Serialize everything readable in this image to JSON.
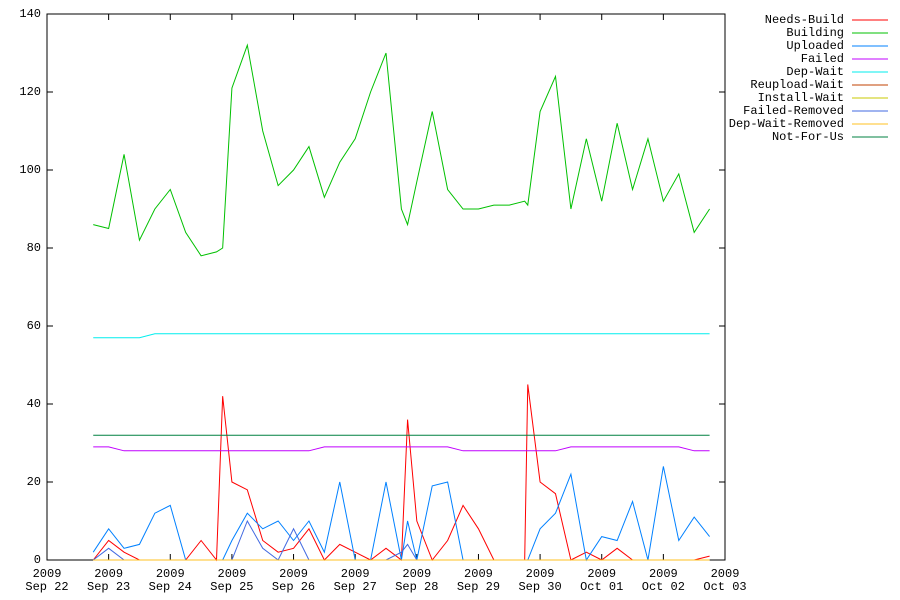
{
  "chart_data": {
    "type": "line",
    "x": [
      0.75,
      1,
      1.25,
      1.5,
      1.75,
      2,
      2.25,
      2.5,
      2.75,
      2.85,
      3,
      3.25,
      3.5,
      3.75,
      4,
      4.25,
      4.5,
      4.75,
      5,
      5.25,
      5.5,
      5.75,
      5.85,
      6,
      6.25,
      6.5,
      6.75,
      7,
      7.25,
      7.5,
      7.75,
      7.8,
      8,
      8.25,
      8.5,
      8.75,
      9,
      9.25,
      9.5,
      9.75,
      10,
      10.25,
      10.5,
      10.75
    ],
    "xlim": [
      0,
      11
    ],
    "xticks": [
      {
        "value": 0,
        "label": "Sep 22",
        "year": "2009"
      },
      {
        "value": 1,
        "label": "Sep 23",
        "year": "2009"
      },
      {
        "value": 2,
        "label": "Sep 24",
        "year": "2009"
      },
      {
        "value": 3,
        "label": "Sep 25",
        "year": "2009"
      },
      {
        "value": 4,
        "label": "Sep 26",
        "year": "2009"
      },
      {
        "value": 5,
        "label": "Sep 27",
        "year": "2009"
      },
      {
        "value": 6,
        "label": "Sep 28",
        "year": "2009"
      },
      {
        "value": 7,
        "label": "Sep 29",
        "year": "2009"
      },
      {
        "value": 8,
        "label": "Sep 30",
        "year": "2009"
      },
      {
        "value": 9,
        "label": "Oct 01",
        "year": "2009"
      },
      {
        "value": 10,
        "label": "Oct 02",
        "year": "2009"
      },
      {
        "value": 11,
        "label": "Oct 03",
        "year": "2009"
      }
    ],
    "ylim": [
      0,
      140
    ],
    "yticks": [
      0,
      20,
      40,
      60,
      80,
      100,
      120,
      140
    ],
    "legend": "outside-top-right",
    "series": [
      {
        "name": "Needs-Build",
        "color": "#ff0000",
        "values": [
          0,
          5,
          2,
          0,
          0,
          0,
          0,
          5,
          0,
          42,
          20,
          18,
          5,
          2,
          3,
          8,
          0,
          4,
          2,
          0,
          3,
          0,
          36,
          10,
          0,
          5,
          14,
          8,
          0,
          0,
          0,
          45,
          20,
          17,
          0,
          2,
          0,
          3,
          0,
          0,
          0,
          0,
          0,
          1
        ]
      },
      {
        "name": "Building",
        "color": "#00c000",
        "values": [
          86,
          85,
          104,
          82,
          90,
          95,
          84,
          78,
          79,
          80,
          121,
          132,
          110,
          96,
          100,
          106,
          93,
          102,
          108,
          120,
          130,
          90,
          86,
          97,
          115,
          95,
          90,
          90,
          91,
          91,
          92,
          91,
          115,
          124,
          90,
          108,
          92,
          112,
          95,
          108,
          92,
          99,
          84,
          90
        ]
      },
      {
        "name": "Uploaded",
        "color": "#0080ff",
        "values": [
          2,
          8,
          3,
          4,
          12,
          14,
          0,
          0,
          0,
          0,
          5,
          12,
          8,
          10,
          5,
          10,
          2,
          20,
          0,
          0,
          20,
          0,
          10,
          0,
          19,
          20,
          0,
          0,
          0,
          0,
          0,
          0,
          8,
          12,
          22,
          0,
          6,
          5,
          15,
          0,
          24,
          5,
          11,
          6
        ]
      },
      {
        "name": "Failed",
        "color": "#c000ff",
        "values": [
          29,
          29,
          28,
          28,
          28,
          28,
          28,
          28,
          28,
          28,
          28,
          28,
          28,
          28,
          28,
          28,
          29,
          29,
          29,
          29,
          29,
          29,
          29,
          29,
          29,
          29,
          28,
          28,
          28,
          28,
          28,
          28,
          28,
          28,
          29,
          29,
          29,
          29,
          29,
          29,
          29,
          29,
          28,
          28
        ]
      },
      {
        "name": "Dep-Wait",
        "color": "#00eeee",
        "values": [
          57,
          57,
          57,
          57,
          58,
          58,
          58,
          58,
          58,
          58,
          58,
          58,
          58,
          58,
          58,
          58,
          58,
          58,
          58,
          58,
          58,
          58,
          58,
          58,
          58,
          58,
          58,
          58,
          58,
          58,
          58,
          58,
          58,
          58,
          58,
          58,
          58,
          58,
          58,
          58,
          58,
          58,
          58,
          58
        ]
      },
      {
        "name": "Reupload-Wait",
        "color": "#c04000",
        "values": [
          0,
          0,
          0,
          0,
          0,
          0,
          0,
          0,
          0,
          0,
          0,
          0,
          0,
          0,
          0,
          0,
          0,
          0,
          0,
          0,
          0,
          0,
          0,
          0,
          0,
          0,
          0,
          0,
          0,
          0,
          0,
          0,
          0,
          0,
          0,
          0,
          0,
          0,
          0,
          0,
          0,
          0,
          0,
          0
        ]
      },
      {
        "name": "Install-Wait",
        "color": "#c8c800",
        "values": [
          0,
          0,
          0,
          0,
          0,
          0,
          0,
          0,
          0,
          0,
          0,
          0,
          0,
          0,
          0,
          0,
          0,
          0,
          0,
          0,
          0,
          0,
          0,
          0,
          0,
          0,
          0,
          0,
          0,
          0,
          0,
          0,
          0,
          0,
          0,
          0,
          0,
          0,
          0,
          0,
          0,
          0,
          0,
          0
        ]
      },
      {
        "name": "Failed-Removed",
        "color": "#4169e1",
        "values": [
          0,
          3,
          0,
          0,
          0,
          0,
          0,
          0,
          0,
          0,
          0,
          10,
          3,
          0,
          8,
          0,
          0,
          0,
          0,
          0,
          0,
          2,
          4,
          0,
          0,
          0,
          0,
          0,
          0,
          0,
          0,
          0,
          0,
          0,
          0,
          0,
          0,
          0,
          0,
          0,
          0,
          0,
          0,
          0
        ]
      },
      {
        "name": "Dep-Wait-Removed",
        "color": "#ffc020",
        "values": [
          0,
          0,
          0,
          0,
          0,
          0,
          0,
          0,
          0,
          0,
          0,
          0,
          0,
          0,
          0,
          0,
          0,
          0,
          0,
          0,
          0,
          0,
          0,
          0,
          0,
          0,
          0,
          0,
          0,
          0,
          0,
          0,
          0,
          0,
          0,
          0,
          0,
          0,
          0,
          0,
          0,
          0,
          0,
          0
        ]
      },
      {
        "name": "Not-For-Us",
        "color": "#008040",
        "values": [
          32,
          32,
          32,
          32,
          32,
          32,
          32,
          32,
          32,
          32,
          32,
          32,
          32,
          32,
          32,
          32,
          32,
          32,
          32,
          32,
          32,
          32,
          32,
          32,
          32,
          32,
          32,
          32,
          32,
          32,
          32,
          32,
          32,
          32,
          32,
          32,
          32,
          32,
          32,
          32,
          32,
          32,
          32,
          32
        ]
      }
    ]
  }
}
